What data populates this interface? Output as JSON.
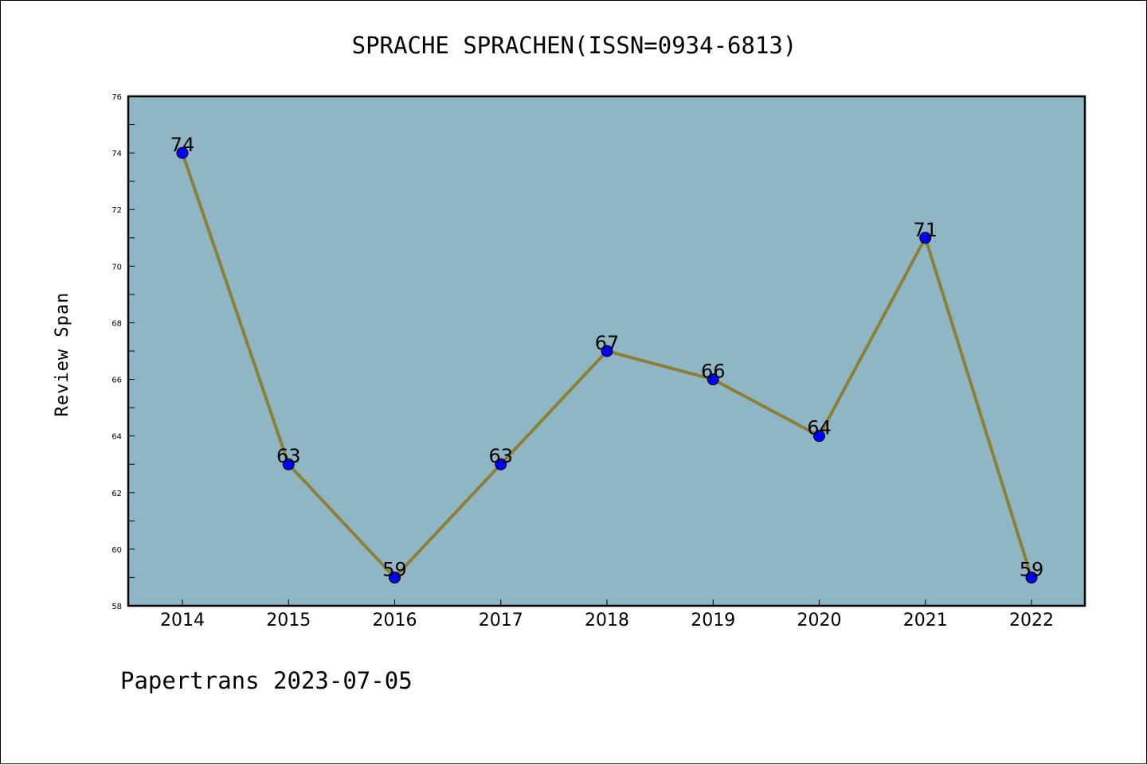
{
  "chart_data": {
    "type": "line",
    "title": "SPRACHE SPRACHEN(ISSN=0934-6813)",
    "xlabel": "",
    "ylabel": "Review Span",
    "categories": [
      "2014",
      "2015",
      "2016",
      "2017",
      "2018",
      "2019",
      "2020",
      "2021",
      "2022"
    ],
    "series": [
      {
        "values": [
          74,
          63,
          59,
          63,
          67,
          66,
          64,
          71,
          59
        ]
      }
    ],
    "ylim": [
      58,
      76
    ],
    "yticks": [
      "58",
      "60",
      "62",
      "64",
      "66",
      "68",
      "70",
      "72",
      "74",
      "76"
    ],
    "data_labels": [
      "74",
      "63",
      "59",
      "63",
      "67",
      "66",
      "64",
      "71",
      "59"
    ],
    "grid": false,
    "colors": {
      "plot_background": "#8fb6c5",
      "line": "#8c8035",
      "marker": "#0000ff"
    }
  },
  "footer": {
    "text": "Papertrans 2023-07-05"
  }
}
